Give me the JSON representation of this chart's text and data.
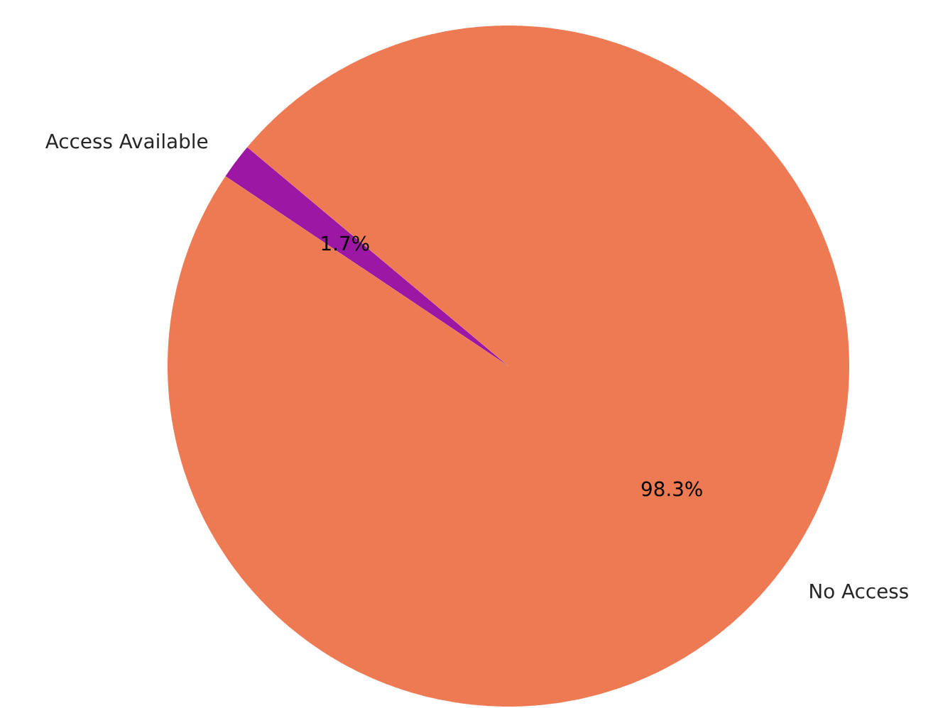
{
  "chart_data": {
    "type": "pie",
    "categories": [
      "Access Available",
      "No Access"
    ],
    "values": [
      1.7,
      98.3
    ],
    "colors": [
      "#9c17a4",
      "#ed7a52"
    ],
    "value_labels": [
      "1.7%",
      "98.3%"
    ]
  }
}
